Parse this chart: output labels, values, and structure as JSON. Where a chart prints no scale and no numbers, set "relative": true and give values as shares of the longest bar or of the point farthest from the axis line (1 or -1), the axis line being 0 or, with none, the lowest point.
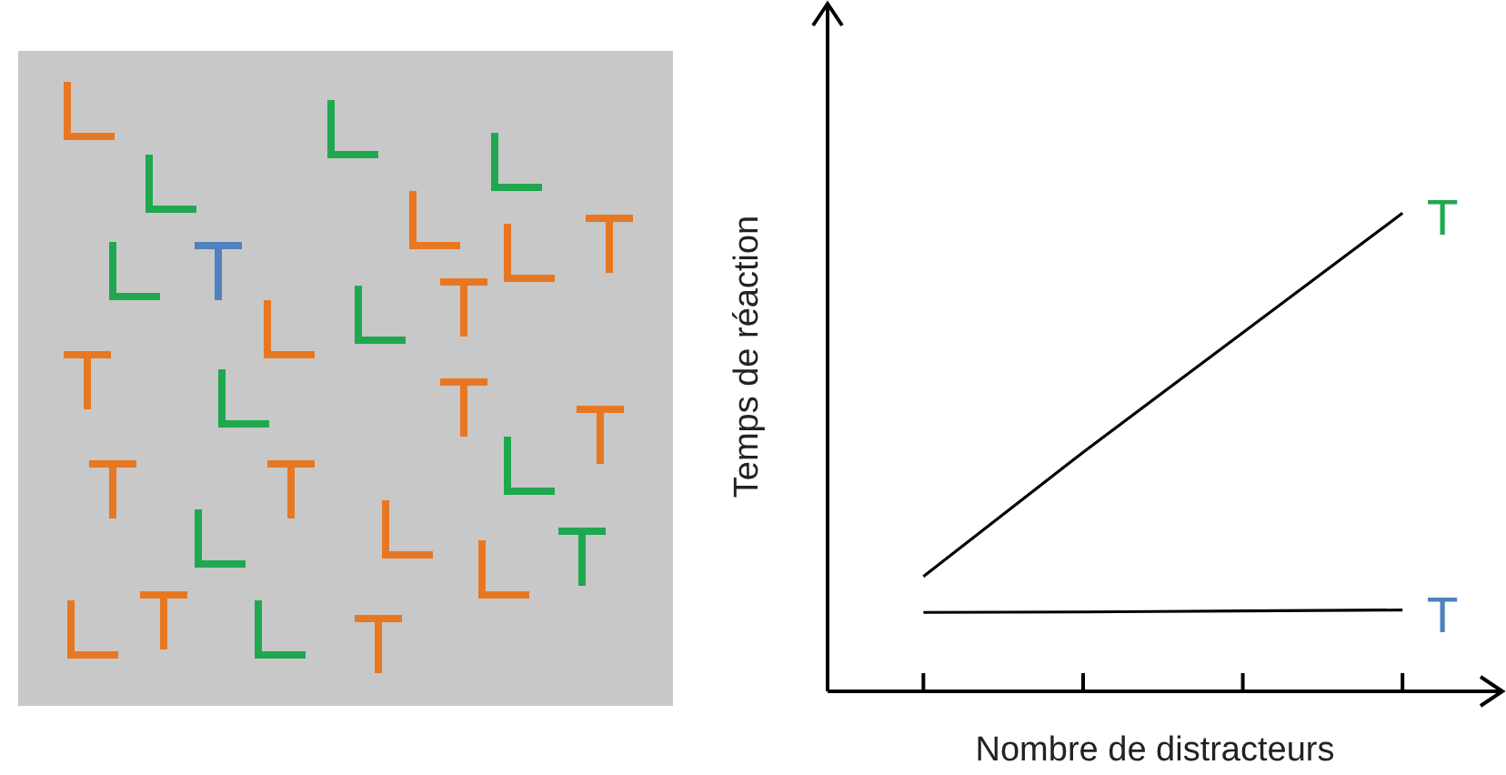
{
  "chart_data": {
    "type": "line",
    "xlabel": "Nombre de distracteurs",
    "ylabel": "Temps de réaction",
    "relative": true,
    "categories": [
      null,
      null,
      null,
      null
    ],
    "series": [
      {
        "name": "T",
        "color": "#000000",
        "values": [
          0.24,
          0.5,
          0.75,
          1
        ]
      },
      {
        "name": "T",
        "color": "#000000",
        "values": [
          0.165,
          0.166,
          0.168,
          0.17
        ]
      }
    ],
    "grid": false,
    "legend": false,
    "marker": "none",
    "line_style": "solid"
  }
}
